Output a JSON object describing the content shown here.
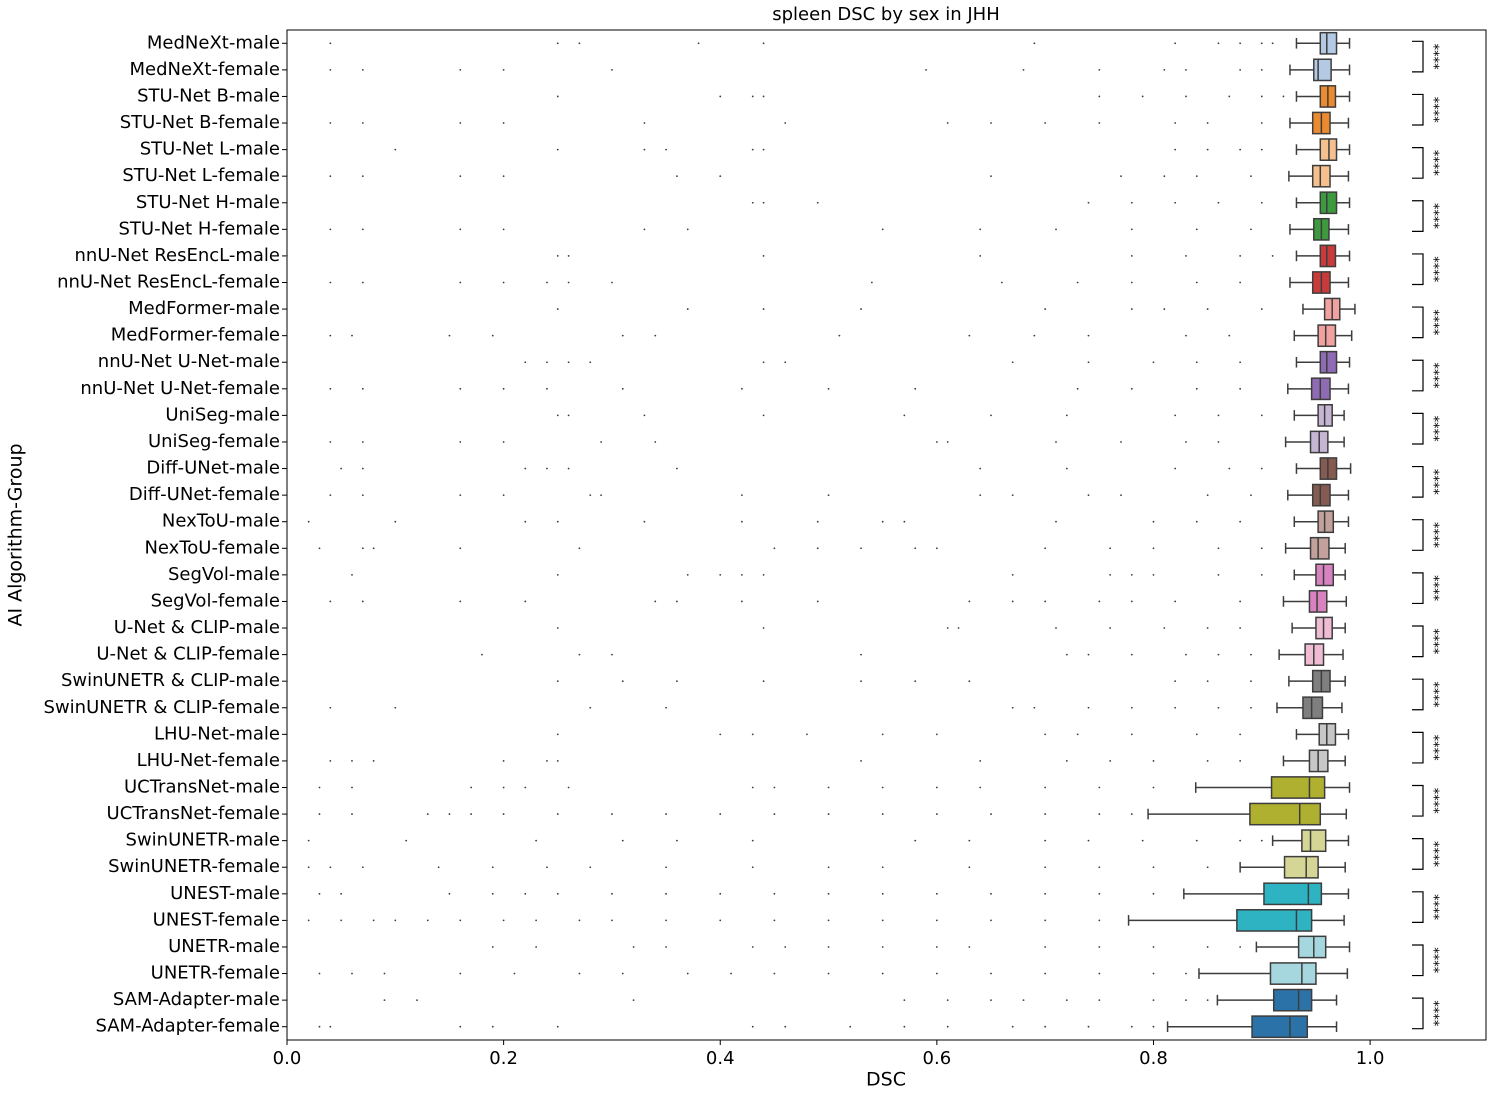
{
  "chart_data": {
    "type": "box",
    "orientation": "horizontal",
    "title": "spleen DSC by sex in JHH",
    "xlabel": "DSC",
    "ylabel": "AI Algorithm-Group",
    "xlim": [
      0,
      1.107
    ],
    "xticks": [
      {
        "value": 0,
        "label": "0.0"
      },
      0.2,
      0.4,
      0.6,
      0.8,
      {
        "value": 1,
        "label": "1.0"
      }
    ],
    "categories": [
      "MedNeXt-male",
      "MedNeXt-female",
      "STU-Net B-male",
      "STU-Net B-female",
      "STU-Net L-male",
      "STU-Net L-female",
      "STU-Net H-male",
      "STU-Net H-female",
      "nnU-Net ResEncL-male",
      "nnU-Net ResEncL-female",
      "MedFormer-male",
      "MedFormer-female",
      "nnU-Net U-Net-male",
      "nnU-Net U-Net-female",
      "UniSeg-male",
      "UniSeg-female",
      "Diff-UNet-male",
      "Diff-UNet-female",
      "NexToU-male",
      "NexToU-female",
      "SegVol-male",
      "SegVol-female",
      "U-Net & CLIP-male",
      "U-Net & CLIP-female",
      "SwinUNETR & CLIP-male",
      "SwinUNETR & CLIP-female",
      "LHU-Net-male",
      "LHU-Net-female",
      "UCTransNet-male",
      "UCTransNet-female",
      "SwinUNETR-male",
      "SwinUNETR-female",
      "UNEST-male",
      "UNEST-female",
      "UNETR-male",
      "UNETR-female",
      "SAM-Adapter-male",
      "SAM-Adapter-female"
    ],
    "colors": [
      "#b4c9e4",
      "#b4c9e4",
      "#ec8a30",
      "#ec8a30",
      "#f5c08e",
      "#f5c08e",
      "#3e9a3e",
      "#3e9a3e",
      "#c93a3a",
      "#c93a3a",
      "#f1a19f",
      "#f1a19f",
      "#8e6bb2",
      "#8e6bb2",
      "#c6b6d4",
      "#c6b6d4",
      "#855a50",
      "#855a50",
      "#c2a19b",
      "#c2a19b",
      "#d982c0",
      "#d982c0",
      "#efbcd4",
      "#efbcd4",
      "#7f7f7f",
      "#7f7f7f",
      "#c7c7c7",
      "#c7c7c7",
      "#afb030",
      "#afb030",
      "#d5d595",
      "#d5d595",
      "#2db3c2",
      "#2db3c2",
      "#a6d7df",
      "#a6d7df",
      "#2a72a8",
      "#2a72a8"
    ],
    "boxes": [
      {
        "whislo": 0.932,
        "q1": 0.954,
        "med": 0.96,
        "q3": 0.969,
        "whishi": 0.981,
        "outliers": [
          0.04,
          0.25,
          0.27,
          0.38,
          0.44,
          0.69,
          0.82,
          0.86,
          0.88,
          0.9,
          0.91
        ]
      },
      {
        "whislo": 0.926,
        "q1": 0.948,
        "med": 0.952,
        "q3": 0.964,
        "whishi": 0.981,
        "outliers": [
          0.04,
          0.07,
          0.16,
          0.2,
          0.3,
          0.59,
          0.68,
          0.75,
          0.81,
          0.83,
          0.88,
          0.9
        ]
      },
      {
        "whislo": 0.932,
        "q1": 0.954,
        "med": 0.961,
        "q3": 0.968,
        "whishi": 0.981,
        "outliers": [
          0.25,
          0.4,
          0.43,
          0.44,
          0.75,
          0.79,
          0.83,
          0.87,
          0.9,
          0.92
        ]
      },
      {
        "whislo": 0.926,
        "q1": 0.947,
        "med": 0.955,
        "q3": 0.963,
        "whishi": 0.98,
        "outliers": [
          0.04,
          0.07,
          0.16,
          0.2,
          0.33,
          0.46,
          0.61,
          0.65,
          0.7,
          0.75,
          0.82,
          0.85,
          0.9
        ]
      },
      {
        "whislo": 0.932,
        "q1": 0.954,
        "med": 0.962,
        "q3": 0.969,
        "whishi": 0.981,
        "outliers": [
          0.1,
          0.25,
          0.33,
          0.35,
          0.43,
          0.44,
          0.82,
          0.85,
          0.88,
          0.9
        ]
      },
      {
        "whislo": 0.925,
        "q1": 0.947,
        "med": 0.954,
        "q3": 0.963,
        "whishi": 0.98,
        "outliers": [
          0.04,
          0.07,
          0.16,
          0.2,
          0.36,
          0.4,
          0.65,
          0.77,
          0.81,
          0.84,
          0.89
        ]
      },
      {
        "whislo": 0.932,
        "q1": 0.954,
        "med": 0.96,
        "q3": 0.969,
        "whishi": 0.981,
        "outliers": [
          0.43,
          0.44,
          0.49,
          0.74,
          0.78,
          0.82,
          0.86,
          0.9
        ]
      },
      {
        "whislo": 0.926,
        "q1": 0.948,
        "med": 0.955,
        "q3": 0.962,
        "whishi": 0.98,
        "outliers": [
          0.04,
          0.07,
          0.16,
          0.2,
          0.33,
          0.37,
          0.55,
          0.64,
          0.71,
          0.78,
          0.84,
          0.89
        ]
      },
      {
        "whislo": 0.932,
        "q1": 0.954,
        "med": 0.96,
        "q3": 0.968,
        "whishi": 0.981,
        "outliers": [
          0.0,
          0.25,
          0.26,
          0.44,
          0.64,
          0.78,
          0.83,
          0.88,
          0.91
        ]
      },
      {
        "whislo": 0.926,
        "q1": 0.947,
        "med": 0.955,
        "q3": 0.963,
        "whishi": 0.98,
        "outliers": [
          0.04,
          0.07,
          0.16,
          0.2,
          0.24,
          0.26,
          0.3,
          0.54,
          0.66,
          0.73,
          0.78,
          0.84,
          0.88
        ]
      },
      {
        "whislo": 0.938,
        "q1": 0.958,
        "med": 0.965,
        "q3": 0.972,
        "whishi": 0.986,
        "outliers": [
          0.25,
          0.37,
          0.44,
          0.53,
          0.7,
          0.78,
          0.81,
          0.85,
          0.9
        ]
      },
      {
        "whislo": 0.93,
        "q1": 0.952,
        "med": 0.959,
        "q3": 0.968,
        "whishi": 0.983,
        "outliers": [
          0.04,
          0.06,
          0.15,
          0.19,
          0.31,
          0.34,
          0.51,
          0.63,
          0.69,
          0.74,
          0.83,
          0.87
        ]
      },
      {
        "whislo": 0.932,
        "q1": 0.954,
        "med": 0.96,
        "q3": 0.969,
        "whishi": 0.981,
        "outliers": [
          0.22,
          0.24,
          0.26,
          0.28,
          0.44,
          0.46,
          0.67,
          0.74,
          0.8,
          0.84,
          0.88
        ]
      },
      {
        "whislo": 0.924,
        "q1": 0.946,
        "med": 0.954,
        "q3": 0.963,
        "whishi": 0.98,
        "outliers": [
          0.04,
          0.07,
          0.16,
          0.2,
          0.24,
          0.31,
          0.42,
          0.5,
          0.58,
          0.73,
          0.78,
          0.84,
          0.88
        ]
      },
      {
        "whislo": 0.93,
        "q1": 0.952,
        "med": 0.958,
        "q3": 0.965,
        "whishi": 0.976,
        "outliers": [
          0.25,
          0.26,
          0.33,
          0.44,
          0.57,
          0.65,
          0.72,
          0.82,
          0.86,
          0.9
        ]
      },
      {
        "whislo": 0.922,
        "q1": 0.945,
        "med": 0.953,
        "q3": 0.961,
        "whishi": 0.976,
        "outliers": [
          0.04,
          0.07,
          0.16,
          0.2,
          0.29,
          0.34,
          0.6,
          0.61,
          0.71,
          0.77,
          0.83,
          0.86
        ]
      },
      {
        "whislo": 0.932,
        "q1": 0.954,
        "med": 0.961,
        "q3": 0.969,
        "whishi": 0.982,
        "outliers": [
          0.05,
          0.07,
          0.22,
          0.24,
          0.26,
          0.36,
          0.64,
          0.72,
          0.82,
          0.87,
          0.9
        ]
      },
      {
        "whislo": 0.924,
        "q1": 0.947,
        "med": 0.954,
        "q3": 0.963,
        "whishi": 0.98,
        "outliers": [
          0.04,
          0.07,
          0.16,
          0.2,
          0.28,
          0.29,
          0.42,
          0.5,
          0.64,
          0.67,
          0.74,
          0.77,
          0.85,
          0.89
        ]
      },
      {
        "whislo": 0.93,
        "q1": 0.952,
        "med": 0.958,
        "q3": 0.966,
        "whishi": 0.98,
        "outliers": [
          0.02,
          0.1,
          0.22,
          0.25,
          0.33,
          0.42,
          0.49,
          0.55,
          0.57,
          0.71,
          0.8,
          0.84,
          0.88
        ]
      },
      {
        "whislo": 0.922,
        "q1": 0.945,
        "med": 0.952,
        "q3": 0.962,
        "whishi": 0.977,
        "outliers": [
          0.03,
          0.07,
          0.08,
          0.16,
          0.27,
          0.45,
          0.49,
          0.53,
          0.58,
          0.6,
          0.7,
          0.76,
          0.8,
          0.86,
          0.9
        ]
      },
      {
        "whislo": 0.93,
        "q1": 0.95,
        "med": 0.957,
        "q3": 0.966,
        "whishi": 0.977,
        "outliers": [
          0.0,
          0.06,
          0.25,
          0.37,
          0.4,
          0.42,
          0.44,
          0.67,
          0.76,
          0.78,
          0.8,
          0.86,
          0.9
        ]
      },
      {
        "whislo": 0.92,
        "q1": 0.944,
        "med": 0.951,
        "q3": 0.96,
        "whishi": 0.978,
        "outliers": [
          0.04,
          0.07,
          0.16,
          0.22,
          0.34,
          0.36,
          0.42,
          0.49,
          0.63,
          0.67,
          0.7,
          0.75,
          0.78,
          0.82,
          0.88
        ]
      },
      {
        "whislo": 0.928,
        "q1": 0.95,
        "med": 0.957,
        "q3": 0.965,
        "whishi": 0.977,
        "outliers": [
          0.25,
          0.44,
          0.61,
          0.62,
          0.71,
          0.76,
          0.81,
          0.85,
          0.88
        ]
      },
      {
        "whislo": 0.916,
        "q1": 0.94,
        "med": 0.948,
        "q3": 0.957,
        "whishi": 0.975,
        "outliers": [
          0.18,
          0.27,
          0.3,
          0.53,
          0.72,
          0.74,
          0.78,
          0.83,
          0.86,
          0.89
        ]
      },
      {
        "whislo": 0.925,
        "q1": 0.947,
        "med": 0.955,
        "q3": 0.963,
        "whishi": 0.977,
        "outliers": [
          0.0,
          0.25,
          0.31,
          0.36,
          0.44,
          0.53,
          0.58,
          0.63,
          0.82,
          0.85,
          0.89
        ]
      },
      {
        "whislo": 0.914,
        "q1": 0.938,
        "med": 0.946,
        "q3": 0.956,
        "whishi": 0.974,
        "outliers": [
          0.04,
          0.1,
          0.28,
          0.35,
          0.67,
          0.69,
          0.74,
          0.78,
          0.82,
          0.86,
          0.89
        ]
      },
      {
        "whislo": 0.932,
        "q1": 0.953,
        "med": 0.96,
        "q3": 0.968,
        "whishi": 0.98,
        "outliers": [
          0.25,
          0.4,
          0.43,
          0.48,
          0.55,
          0.6,
          0.7,
          0.73,
          0.78,
          0.84,
          0.88
        ]
      },
      {
        "whislo": 0.92,
        "q1": 0.944,
        "med": 0.952,
        "q3": 0.961,
        "whishi": 0.977,
        "outliers": [
          0.04,
          0.06,
          0.08,
          0.2,
          0.24,
          0.25,
          0.53,
          0.64,
          0.72,
          0.76,
          0.8,
          0.85,
          0.88
        ]
      },
      {
        "whislo": 0.839,
        "q1": 0.909,
        "med": 0.944,
        "q3": 0.958,
        "whishi": 0.981,
        "outliers": [
          0.03,
          0.06,
          0.17,
          0.2,
          0.22,
          0.26,
          0.43,
          0.45,
          0.5,
          0.55,
          0.6,
          0.64,
          0.7,
          0.75,
          0.8
        ]
      },
      {
        "whislo": 0.795,
        "q1": 0.889,
        "med": 0.935,
        "q3": 0.954,
        "whishi": 0.978,
        "outliers": [
          0.03,
          0.06,
          0.13,
          0.15,
          0.17,
          0.2,
          0.25,
          0.3,
          0.35,
          0.4,
          0.45,
          0.5,
          0.55,
          0.6,
          0.65,
          0.7,
          0.75,
          0.78
        ]
      },
      {
        "whislo": 0.91,
        "q1": 0.937,
        "med": 0.945,
        "q3": 0.959,
        "whishi": 0.98,
        "outliers": [
          0.02,
          0.11,
          0.23,
          0.31,
          0.36,
          0.43,
          0.58,
          0.63,
          0.7,
          0.74,
          0.79,
          0.84,
          0.88,
          0.9
        ]
      },
      {
        "whislo": 0.88,
        "q1": 0.921,
        "med": 0.941,
        "q3": 0.952,
        "whishi": 0.977,
        "outliers": [
          0.02,
          0.04,
          0.07,
          0.14,
          0.19,
          0.24,
          0.28,
          0.35,
          0.43,
          0.5,
          0.55,
          0.63,
          0.7,
          0.75,
          0.8,
          0.85
        ]
      },
      {
        "whislo": 0.828,
        "q1": 0.902,
        "med": 0.943,
        "q3": 0.955,
        "whishi": 0.98,
        "outliers": [
          0.0,
          0.03,
          0.05,
          0.15,
          0.19,
          0.22,
          0.25,
          0.3,
          0.35,
          0.4,
          0.45,
          0.5,
          0.55,
          0.6,
          0.65,
          0.7,
          0.75,
          0.8
        ]
      },
      {
        "whislo": 0.777,
        "q1": 0.877,
        "med": 0.932,
        "q3": 0.946,
        "whishi": 0.976,
        "outliers": [
          0.0,
          0.02,
          0.05,
          0.08,
          0.1,
          0.13,
          0.16,
          0.2,
          0.23,
          0.27,
          0.3,
          0.35,
          0.4,
          0.45,
          0.5,
          0.55,
          0.6,
          0.65,
          0.7,
          0.75
        ]
      },
      {
        "whislo": 0.895,
        "q1": 0.934,
        "med": 0.948,
        "q3": 0.959,
        "whishi": 0.981,
        "outliers": [
          0.19,
          0.23,
          0.32,
          0.35,
          0.43,
          0.46,
          0.5,
          0.55,
          0.6,
          0.63,
          0.7,
          0.75,
          0.8,
          0.85,
          0.88
        ]
      },
      {
        "whislo": 0.842,
        "q1": 0.908,
        "med": 0.937,
        "q3": 0.95,
        "whishi": 0.979,
        "outliers": [
          0.03,
          0.06,
          0.09,
          0.16,
          0.21,
          0.27,
          0.31,
          0.37,
          0.41,
          0.45,
          0.5,
          0.55,
          0.6,
          0.65,
          0.7,
          0.75,
          0.8,
          0.83
        ]
      },
      {
        "whislo": 0.859,
        "q1": 0.911,
        "med": 0.934,
        "q3": 0.946,
        "whishi": 0.969,
        "outliers": [
          0.09,
          0.12,
          0.32,
          0.57,
          0.61,
          0.65,
          0.68,
          0.72,
          0.75,
          0.8,
          0.83,
          0.85
        ]
      },
      {
        "whislo": 0.813,
        "q1": 0.891,
        "med": 0.926,
        "q3": 0.942,
        "whishi": 0.969,
        "outliers": [
          0.03,
          0.04,
          0.16,
          0.19,
          0.25,
          0.43,
          0.46,
          0.52,
          0.57,
          0.61,
          0.67,
          0.7,
          0.74,
          0.78,
          0.8
        ]
      }
    ],
    "significance": [
      "****",
      "****",
      "****",
      "****",
      "****",
      "****",
      "****",
      "****",
      "****",
      "****",
      "****",
      "****",
      "****",
      "****",
      "****",
      "****",
      "****",
      "****",
      "****"
    ]
  }
}
